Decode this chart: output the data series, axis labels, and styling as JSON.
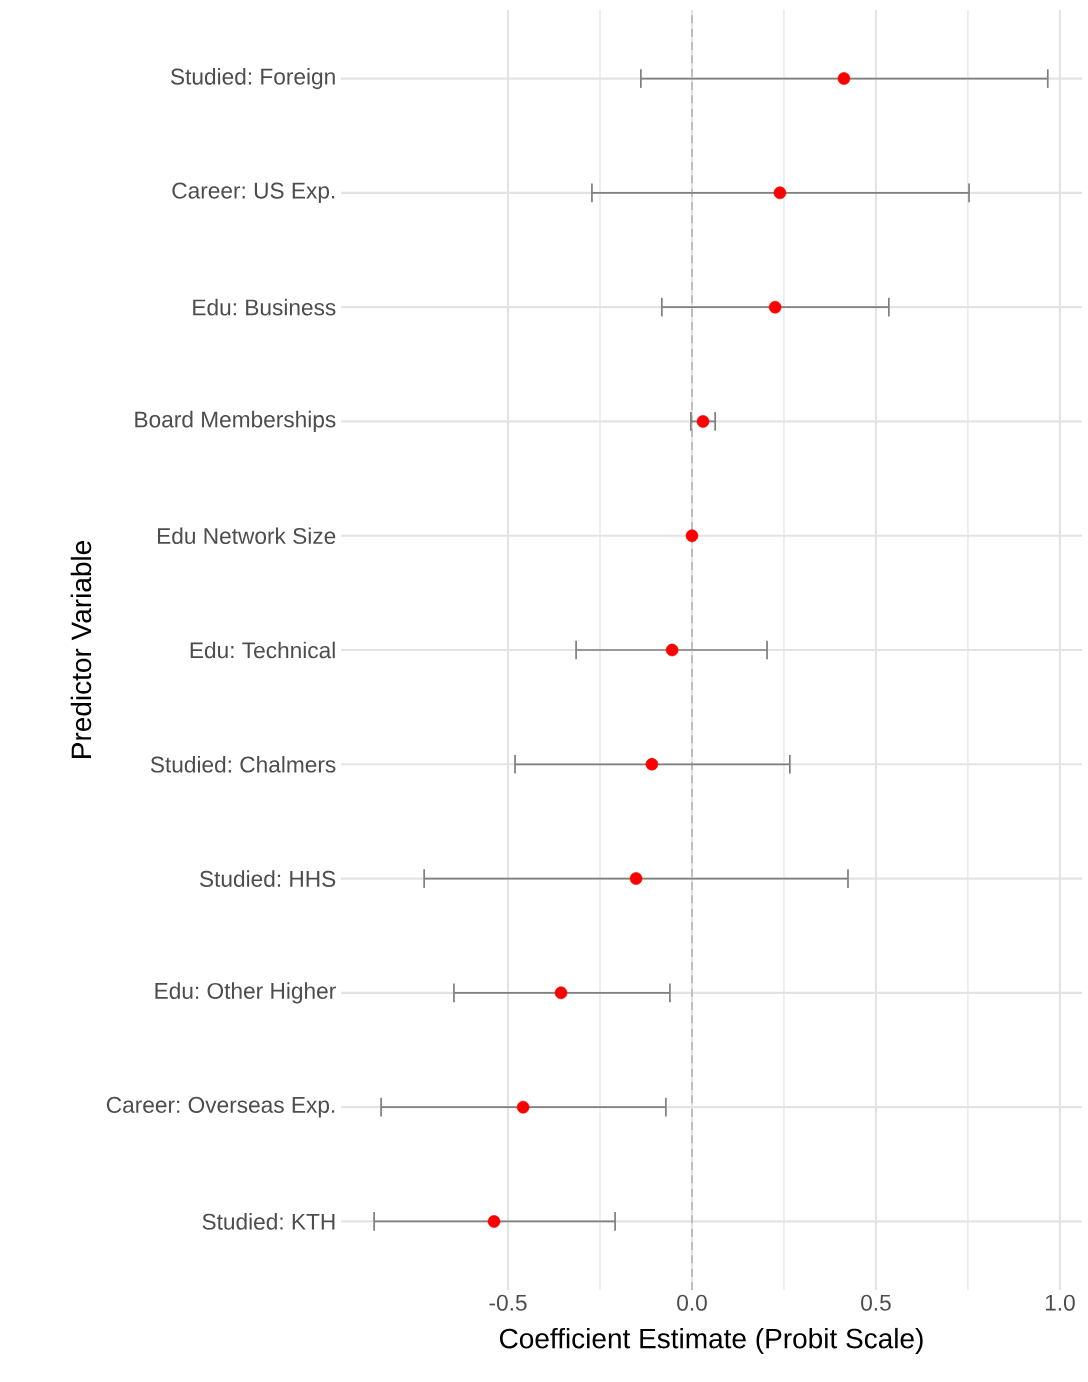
{
  "chart_data": {
    "type": "scatter",
    "orientation": "horizontal",
    "xlabel": "Coefficient Estimate (Probit Scale)",
    "ylabel": "Predictor Variable",
    "categories": [
      "Studied: Foreign",
      "Career: US Exp.",
      "Edu: Business",
      "Board Memberships",
      "Edu Network Size",
      "Edu: Technical",
      "Studied: Chalmers",
      "Studied: HHS",
      "Edu: Other Higher",
      "Career: Overseas Exp.",
      "Studied: KTH"
    ],
    "values": [
      0.413,
      0.239,
      0.226,
      0.03,
      0.0,
      -0.054,
      -0.109,
      -0.152,
      -0.356,
      -0.459,
      -0.538
    ],
    "errors": [
      [
        -0.139,
        0.967
      ],
      [
        -0.272,
        0.753
      ],
      [
        -0.082,
        0.535
      ],
      [
        -0.003,
        0.063
      ],
      null,
      [
        -0.315,
        0.204
      ],
      [
        -0.481,
        0.266
      ],
      [
        -0.728,
        0.424
      ],
      [
        -0.647,
        -0.06
      ],
      [
        -0.845,
        -0.071
      ],
      [
        -0.864,
        -0.209
      ]
    ],
    "color": "#ff0000",
    "xlim": [
      -0.954,
      1.06
    ],
    "xticks": [
      -0.5,
      {
        "value": 0,
        "label": "0.0"
      },
      0.5,
      {
        "value": 1,
        "label": "1.0"
      }
    ],
    "ref_lines": [
      {
        "axis": "x",
        "value": 0,
        "color": "#bebebe",
        "line_style": "dashed"
      }
    ],
    "grid": true
  }
}
